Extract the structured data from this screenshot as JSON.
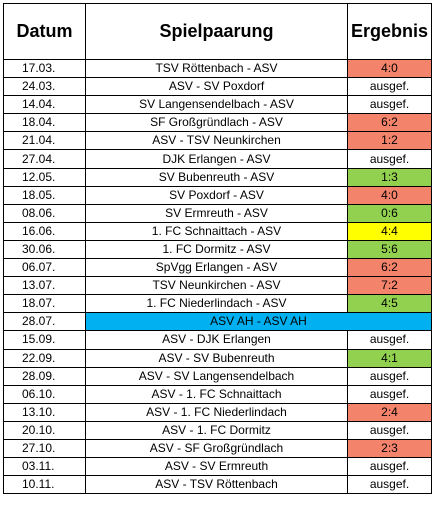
{
  "headers": {
    "date": "Datum",
    "match": "Spielpaarung",
    "result": "Ergebnis"
  },
  "colors": {
    "loss": "#f4836b",
    "win": "#92d050",
    "draw": "#ffff00",
    "special": "#00b0f0"
  },
  "rows": [
    {
      "date": "17.03.",
      "match": "TSV Röttenbach - ASV",
      "result": "4:0",
      "status": "red"
    },
    {
      "date": "24.03.",
      "match": "ASV - SV Poxdorf",
      "result": "ausgef.",
      "status": "none"
    },
    {
      "date": "14.04.",
      "match": "SV Langensendelbach - ASV",
      "result": "ausgef.",
      "status": "none"
    },
    {
      "date": "18.04.",
      "match": "SF Großgründlach - ASV",
      "result": "6:2",
      "status": "red"
    },
    {
      "date": "21.04.",
      "match": "ASV - TSV Neunkirchen",
      "result": "1:2",
      "status": "red"
    },
    {
      "date": "27.04.",
      "match": "DJK Erlangen - ASV",
      "result": "ausgef.",
      "status": "none"
    },
    {
      "date": "12.05.",
      "match": "SV Bubenreuth - ASV",
      "result": "1:3",
      "status": "green"
    },
    {
      "date": "18.05.",
      "match": "SV Poxdorf - ASV",
      "result": "4:0",
      "status": "red"
    },
    {
      "date": "08.06.",
      "match": "SV Ermreuth - ASV",
      "result": "0:6",
      "status": "green"
    },
    {
      "date": "16.06.",
      "match": "1. FC Schnaittach - ASV",
      "result": "4:4",
      "status": "yellow"
    },
    {
      "date": "30.06.",
      "match": "1. FC Dormitz - ASV",
      "result": "5:6",
      "status": "green"
    },
    {
      "date": "06.07.",
      "match": "SpVgg Erlangen - ASV",
      "result": "6:2",
      "status": "red"
    },
    {
      "date": "13.07.",
      "match": "TSV Neunkirchen - ASV",
      "result": "7:2",
      "status": "red"
    },
    {
      "date": "18.07.",
      "match": "1. FC Niederlindach - ASV",
      "result": "4:5",
      "status": "green"
    },
    {
      "date": "28.07.",
      "match": "ASV AH - ASV AH",
      "result": "",
      "status": "special"
    },
    {
      "date": "15.09.",
      "match": "ASV - DJK Erlangen",
      "result": "ausgef.",
      "status": "none"
    },
    {
      "date": "22.09.",
      "match": "ASV - SV Bubenreuth",
      "result": "4:1",
      "status": "green"
    },
    {
      "date": "28.09.",
      "match": "ASV - SV Langensendelbach",
      "result": "ausgef.",
      "status": "none"
    },
    {
      "date": "06.10.",
      "match": "ASV - 1. FC Schnaittach",
      "result": "ausgef.",
      "status": "none"
    },
    {
      "date": "13.10.",
      "match": "ASV - 1. FC Niederlindach",
      "result": "2:4",
      "status": "red"
    },
    {
      "date": "20.10.",
      "match": "ASV - 1. FC Dormitz",
      "result": "ausgef.",
      "status": "none"
    },
    {
      "date": "27.10.",
      "match": "ASV - SF Großgründlach",
      "result": "2:3",
      "status": "red"
    },
    {
      "date": "03.11.",
      "match": "ASV - SV Ermreuth",
      "result": "ausgef.",
      "status": "none"
    },
    {
      "date": "10.11.",
      "match": "ASV - TSV Röttenbach",
      "result": "ausgef.",
      "status": "none"
    }
  ]
}
